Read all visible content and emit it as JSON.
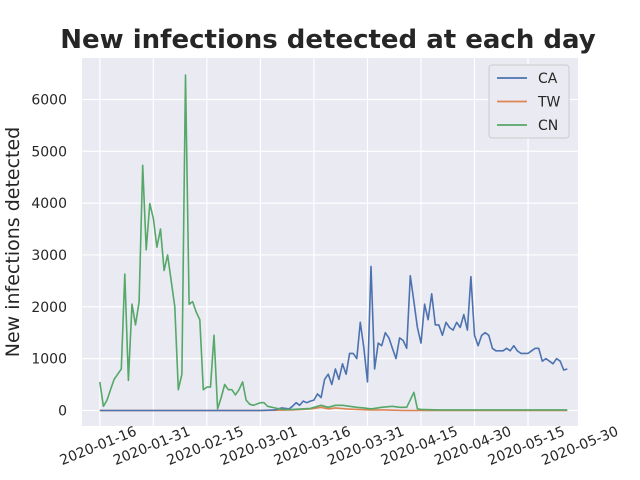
{
  "chart_data": {
    "type": "line",
    "title": "New infections detected at each day",
    "xlabel": "",
    "ylabel": "New infections detected",
    "xlim": [
      "2020-01-11",
      "2020-05-29"
    ],
    "ylim": [
      -300,
      6800
    ],
    "x_ticks": [
      "2020-01-16",
      "2020-01-31",
      "2020-02-15",
      "2020-03-01",
      "2020-03-16",
      "2020-03-31",
      "2020-04-15",
      "2020-04-30",
      "2020-05-15",
      "2020-05-30"
    ],
    "y_ticks": [
      0,
      1000,
      2000,
      3000,
      4000,
      5000,
      6000
    ],
    "y_tick_labels": [
      "0",
      "1000",
      "2000",
      "3000",
      "4000",
      "5000",
      "6000"
    ],
    "grid": true,
    "legend_position": "top-right",
    "series": [
      {
        "name": "CA",
        "color": "#4c72b0",
        "points": [
          [
            "2020-01-16",
            0
          ],
          [
            "2020-02-15",
            0
          ],
          [
            "2020-03-01",
            0
          ],
          [
            "2020-03-05",
            10
          ],
          [
            "2020-03-07",
            50
          ],
          [
            "2020-03-09",
            30
          ],
          [
            "2020-03-10",
            80
          ],
          [
            "2020-03-11",
            150
          ],
          [
            "2020-03-12",
            100
          ],
          [
            "2020-03-13",
            180
          ],
          [
            "2020-03-14",
            150
          ],
          [
            "2020-03-15",
            180
          ],
          [
            "2020-03-16",
            200
          ],
          [
            "2020-03-17",
            320
          ],
          [
            "2020-03-18",
            250
          ],
          [
            "2020-03-19",
            600
          ],
          [
            "2020-03-20",
            700
          ],
          [
            "2020-03-21",
            500
          ],
          [
            "2020-03-22",
            800
          ],
          [
            "2020-03-23",
            600
          ],
          [
            "2020-03-24",
            900
          ],
          [
            "2020-03-25",
            700
          ],
          [
            "2020-03-26",
            1100
          ],
          [
            "2020-03-27",
            1100
          ],
          [
            "2020-03-28",
            1000
          ],
          [
            "2020-03-29",
            1700
          ],
          [
            "2020-03-30",
            1200
          ],
          [
            "2020-03-31",
            550
          ],
          [
            "2020-04-01",
            2780
          ],
          [
            "2020-04-02",
            800
          ],
          [
            "2020-04-03",
            1300
          ],
          [
            "2020-04-04",
            1250
          ],
          [
            "2020-04-05",
            1500
          ],
          [
            "2020-04-06",
            1400
          ],
          [
            "2020-04-07",
            1200
          ],
          [
            "2020-04-08",
            1000
          ],
          [
            "2020-04-09",
            1400
          ],
          [
            "2020-04-10",
            1350
          ],
          [
            "2020-04-11",
            1200
          ],
          [
            "2020-04-12",
            2600
          ],
          [
            "2020-04-13",
            2100
          ],
          [
            "2020-04-14",
            1600
          ],
          [
            "2020-04-15",
            1300
          ],
          [
            "2020-04-16",
            2050
          ],
          [
            "2020-04-17",
            1750
          ],
          [
            "2020-04-18",
            2250
          ],
          [
            "2020-04-19",
            1650
          ],
          [
            "2020-04-20",
            1650
          ],
          [
            "2020-04-21",
            1450
          ],
          [
            "2020-04-22",
            1700
          ],
          [
            "2020-04-23",
            1600
          ],
          [
            "2020-04-24",
            1550
          ],
          [
            "2020-04-25",
            1700
          ],
          [
            "2020-04-26",
            1600
          ],
          [
            "2020-04-27",
            1850
          ],
          [
            "2020-04-28",
            1550
          ],
          [
            "2020-04-29",
            2580
          ],
          [
            "2020-04-30",
            1450
          ],
          [
            "2020-05-01",
            1250
          ],
          [
            "2020-05-02",
            1450
          ],
          [
            "2020-05-03",
            1500
          ],
          [
            "2020-05-04",
            1450
          ],
          [
            "2020-05-05",
            1200
          ],
          [
            "2020-05-06",
            1150
          ],
          [
            "2020-05-08",
            1150
          ],
          [
            "2020-05-09",
            1200
          ],
          [
            "2020-05-10",
            1150
          ],
          [
            "2020-05-11",
            1250
          ],
          [
            "2020-05-12",
            1150
          ],
          [
            "2020-05-13",
            1100
          ],
          [
            "2020-05-15",
            1100
          ],
          [
            "2020-05-16",
            1150
          ],
          [
            "2020-05-17",
            1200
          ],
          [
            "2020-05-18",
            1200
          ],
          [
            "2020-05-19",
            950
          ],
          [
            "2020-05-20",
            1000
          ],
          [
            "2020-05-21",
            950
          ],
          [
            "2020-05-22",
            900
          ],
          [
            "2020-05-23",
            1000
          ],
          [
            "2020-05-24",
            950
          ],
          [
            "2020-05-25",
            780
          ],
          [
            "2020-05-26",
            800
          ]
        ]
      },
      {
        "name": "TW",
        "color": "#dd8452",
        "points": [
          [
            "2020-01-16",
            0
          ],
          [
            "2020-02-15",
            0
          ],
          [
            "2020-03-01",
            0
          ],
          [
            "2020-03-10",
            10
          ],
          [
            "2020-03-15",
            30
          ],
          [
            "2020-03-18",
            60
          ],
          [
            "2020-03-20",
            30
          ],
          [
            "2020-03-22",
            50
          ],
          [
            "2020-03-25",
            30
          ],
          [
            "2020-03-28",
            20
          ],
          [
            "2020-04-01",
            10
          ],
          [
            "2020-04-05",
            10
          ],
          [
            "2020-04-10",
            0
          ],
          [
            "2020-05-26",
            0
          ]
        ]
      },
      {
        "name": "CN",
        "color": "#55a868",
        "points": [
          [
            "2020-01-16",
            550
          ],
          [
            "2020-01-17",
            80
          ],
          [
            "2020-01-18",
            200
          ],
          [
            "2020-01-19",
            400
          ],
          [
            "2020-01-20",
            600
          ],
          [
            "2020-01-21",
            700
          ],
          [
            "2020-01-22",
            800
          ],
          [
            "2020-01-23",
            2630
          ],
          [
            "2020-01-24",
            580
          ],
          [
            "2020-01-25",
            2050
          ],
          [
            "2020-01-26",
            1650
          ],
          [
            "2020-01-27",
            2100
          ],
          [
            "2020-01-28",
            4730
          ],
          [
            "2020-01-29",
            3100
          ],
          [
            "2020-01-30",
            3990
          ],
          [
            "2020-01-31",
            3700
          ],
          [
            "2020-02-01",
            3150
          ],
          [
            "2020-02-02",
            3500
          ],
          [
            "2020-02-03",
            2700
          ],
          [
            "2020-02-04",
            3000
          ],
          [
            "2020-02-05",
            2500
          ],
          [
            "2020-02-06",
            2000
          ],
          [
            "2020-02-07",
            400
          ],
          [
            "2020-02-08",
            700
          ],
          [
            "2020-02-09",
            6470
          ],
          [
            "2020-02-10",
            2050
          ],
          [
            "2020-02-11",
            2100
          ],
          [
            "2020-02-12",
            1900
          ],
          [
            "2020-02-13",
            1750
          ],
          [
            "2020-02-14",
            400
          ],
          [
            "2020-02-15",
            450
          ],
          [
            "2020-02-16",
            450
          ],
          [
            "2020-02-17",
            1450
          ],
          [
            "2020-02-18",
            30
          ],
          [
            "2020-02-19",
            250
          ],
          [
            "2020-02-20",
            500
          ],
          [
            "2020-02-21",
            400
          ],
          [
            "2020-02-22",
            400
          ],
          [
            "2020-02-23",
            300
          ],
          [
            "2020-02-24",
            400
          ],
          [
            "2020-02-25",
            550
          ],
          [
            "2020-02-26",
            200
          ],
          [
            "2020-02-27",
            120
          ],
          [
            "2020-02-28",
            100
          ],
          [
            "2020-03-01",
            150
          ],
          [
            "2020-03-02",
            150
          ],
          [
            "2020-03-03",
            80
          ],
          [
            "2020-03-05",
            50
          ],
          [
            "2020-03-07",
            20
          ],
          [
            "2020-03-10",
            20
          ],
          [
            "2020-03-15",
            40
          ],
          [
            "2020-03-18",
            100
          ],
          [
            "2020-03-20",
            60
          ],
          [
            "2020-03-22",
            100
          ],
          [
            "2020-03-24",
            100
          ],
          [
            "2020-03-26",
            80
          ],
          [
            "2020-03-28",
            60
          ],
          [
            "2020-03-30",
            50
          ],
          [
            "2020-04-01",
            30
          ],
          [
            "2020-04-04",
            60
          ],
          [
            "2020-04-07",
            80
          ],
          [
            "2020-04-09",
            60
          ],
          [
            "2020-04-11",
            60
          ],
          [
            "2020-04-13",
            350
          ],
          [
            "2020-04-14",
            30
          ],
          [
            "2020-04-15",
            20
          ],
          [
            "2020-04-20",
            10
          ],
          [
            "2020-04-30",
            10
          ],
          [
            "2020-05-15",
            10
          ],
          [
            "2020-05-26",
            10
          ]
        ]
      }
    ]
  }
}
